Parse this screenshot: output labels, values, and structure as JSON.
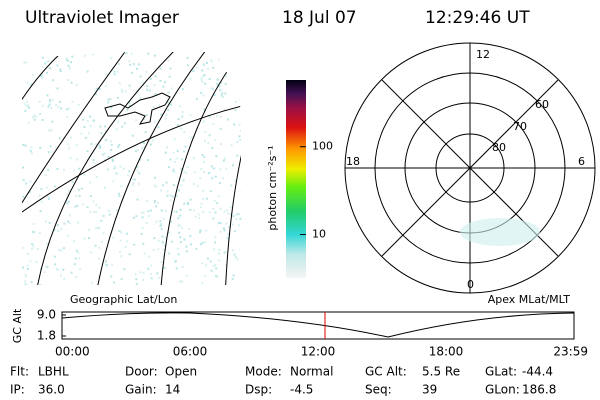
{
  "header": {
    "instrument": "Ultraviolet Imager",
    "date": "18 Jul 07",
    "time": "12:29:46 UT"
  },
  "colorbar": {
    "label": "photon cm⁻²s⁻¹",
    "scale": "log",
    "lim": [
      3.2,
      575
    ],
    "ticks": [
      10,
      100
    ]
  },
  "polar": {
    "mlt_labels": [
      "12",
      "6",
      "0",
      "18"
    ],
    "lat_labels": [
      "60",
      "70",
      "80"
    ]
  },
  "timeline": {
    "left_label": "Geographic Lat/Lon",
    "right_label": "Apex MLat/MLT",
    "ylabel": "GC Alt",
    "yticks": [
      {
        "value": 9,
        "label": "9.0"
      },
      1.8
    ],
    "xticks": [
      "00:00",
      "06:00",
      "12:00",
      "18:00",
      "23:59"
    ]
  },
  "status": [
    [
      [
        "Flt:",
        "LBHL"
      ],
      [
        "Door:",
        "Open"
      ],
      [
        "Mode:",
        "Normal"
      ],
      [
        "GC Alt:",
        "5.5 Re"
      ],
      [
        "GLat:",
        "-44.4"
      ]
    ],
    [
      [
        "IP:",
        "36.0"
      ],
      [
        "Gain:",
        "14"
      ],
      [
        "Dsp:",
        "-4.5"
      ],
      [
        "Seq:",
        "39"
      ],
      [
        "GLon:",
        "186.8"
      ]
    ]
  ]
}
